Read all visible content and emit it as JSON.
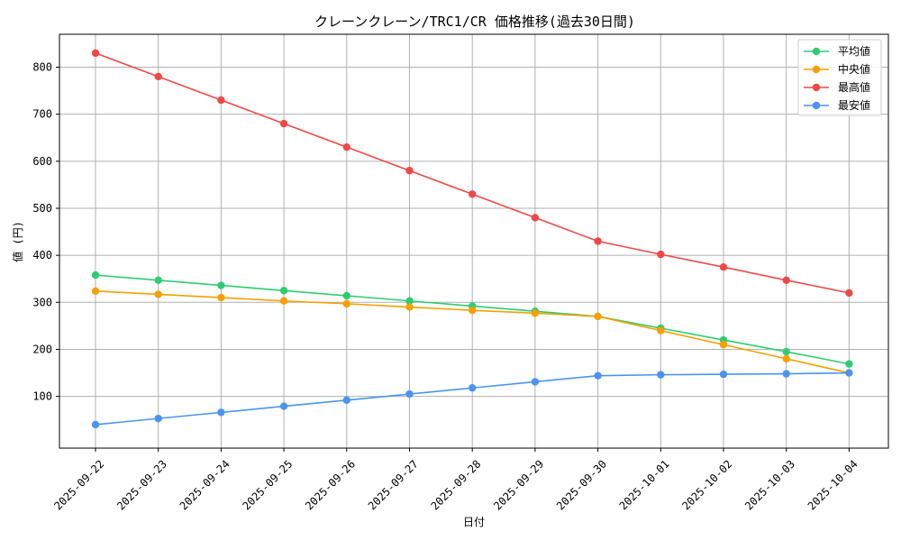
{
  "chart_data": {
    "type": "line",
    "title": "クレーンクレーン/TRC1/CR 価格推移(過去30日間)",
    "xlabel": "日付",
    "ylabel": "値 (円)",
    "ylim": [
      -10,
      870
    ],
    "yticks": [
      100,
      200,
      300,
      400,
      500,
      600,
      700,
      800
    ],
    "grid": true,
    "legend_position": "top-right",
    "categories": [
      "2025-09-22",
      "2025-09-23",
      "2025-09-24",
      "2025-09-25",
      "2025-09-26",
      "2025-09-27",
      "2025-09-28",
      "2025-09-29",
      "2025-09-30",
      "2025-10-01",
      "2025-10-02",
      "2025-10-03",
      "2025-10-04"
    ],
    "series": [
      {
        "name": "平均値",
        "color": "#2ecc71",
        "values": [
          358,
          347,
          336,
          325,
          314,
          303,
          292,
          281,
          270,
          245,
          220,
          195,
          169
        ]
      },
      {
        "name": "中央値",
        "color": "#f5a000",
        "values": [
          324,
          317,
          310,
          303,
          297,
          290,
          283,
          277,
          270,
          240,
          210,
          180,
          150
        ]
      },
      {
        "name": "最高値",
        "color": "#f04848",
        "values": [
          830,
          780,
          730,
          680,
          630,
          580,
          530,
          480,
          430,
          402,
          375,
          347,
          320
        ]
      },
      {
        "name": "最安値",
        "color": "#4a94f0",
        "values": [
          40,
          53,
          66,
          79,
          92,
          105,
          118,
          131,
          144,
          146,
          147,
          148,
          150
        ]
      }
    ]
  }
}
